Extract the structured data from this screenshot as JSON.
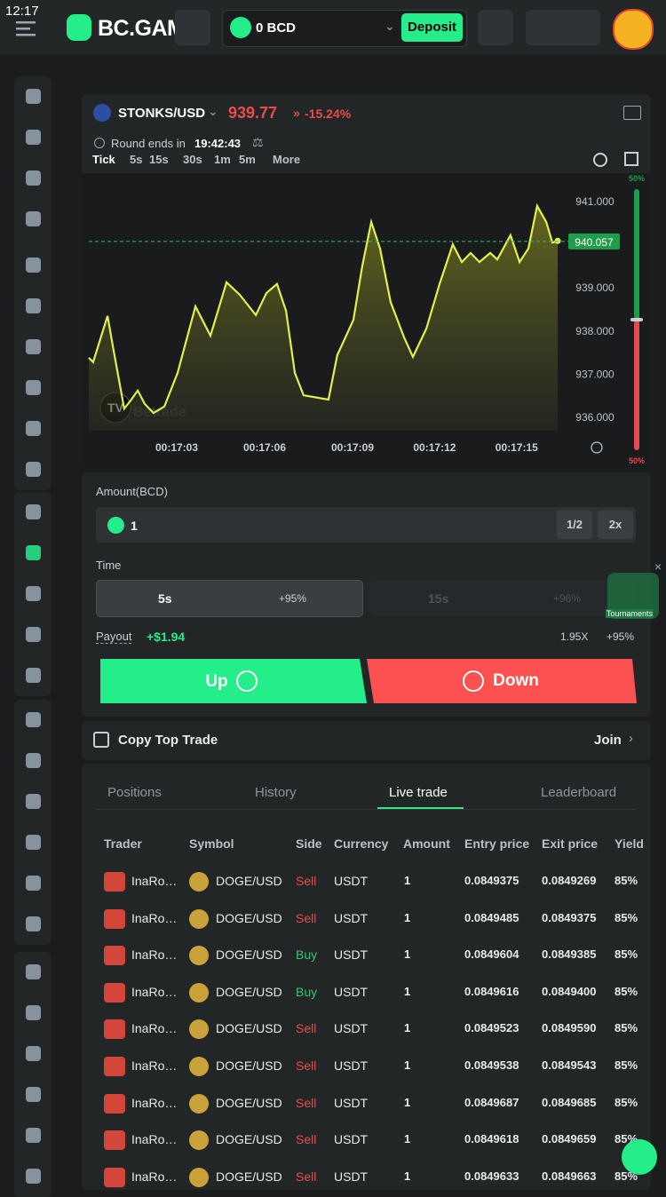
{
  "status_bar": {
    "time": "12:17"
  },
  "header": {
    "logo": "BC.GAME",
    "balance": "0 BCD",
    "deposit": "Deposit"
  },
  "market": {
    "pair": "STONKS/USD",
    "price": 939.77,
    "change": "-15.24%",
    "round_label": "Round ends in",
    "round_time": "19:42:43",
    "timeframes": [
      "Tick",
      "5s",
      "15s",
      "30s",
      "1m",
      "5m",
      "More"
    ]
  },
  "chart_data": {
    "type": "line",
    "watermark": "Betrade",
    "x": [
      0.0,
      0.15,
      0.64,
      0.85,
      1.21,
      1.45,
      1.67,
      1.91,
      2.21,
      2.58,
      3.03,
      3.64,
      4.15,
      4.7,
      5.15,
      5.7,
      6.06,
      6.42,
      6.73,
      7.03,
      7.33,
      8.18,
      8.48,
      9.03,
      9.33,
      9.64,
      9.94,
      10.3,
      10.76,
      11.06,
      11.52,
      11.97,
      12.42,
      12.73,
      13.03,
      13.33,
      13.7,
      13.94,
      14.39,
      14.7,
      15.0,
      15.3,
      15.61,
      15.82,
      16.0
    ],
    "series": [
      {
        "color": "#e3ee4f",
        "values": [
          937.36,
          937.26,
          938.33,
          937.52,
          936.18,
          936.39,
          936.6,
          936.29,
          936.08,
          936.23,
          937.01,
          938.55,
          937.87,
          939.11,
          938.82,
          938.35,
          938.86,
          939.07,
          938.45,
          937.01,
          936.49,
          936.39,
          937.42,
          938.24,
          939.48,
          940.51,
          939.89,
          938.65,
          937.83,
          937.38,
          938.04,
          939.07,
          939.99,
          939.58,
          939.79,
          939.58,
          939.79,
          939.64,
          940.2,
          939.58,
          939.89,
          940.88,
          940.51,
          940.03,
          940.07
        ]
      }
    ],
    "xlim": [
      0,
      16.5
    ],
    "xticks": [
      {
        "value": 3,
        "label": "00:17:03"
      },
      {
        "value": 6,
        "label": "00:17:06"
      },
      {
        "value": 9,
        "label": "00:17:09"
      },
      {
        "value": 11.8,
        "label": "00:17:12"
      },
      {
        "value": 14.6,
        "label": "00:17:15"
      }
    ],
    "ylim": [
      935.67,
      941.64
    ],
    "yticks": [
      {
        "value": 936,
        "label": "936.000"
      },
      {
        "value": 937,
        "label": "937.000"
      },
      {
        "value": 938,
        "label": "938.000"
      },
      {
        "value": 939,
        "label": "939.000"
      },
      {
        "value": 941,
        "label": "941.000"
      }
    ],
    "last_price": 940.057,
    "sentiment": [
      {
        "value": 50,
        "label": "50%",
        "color": "#1f9e4a"
      },
      {
        "value": 50,
        "label": "50%",
        "color": "#e5484d"
      }
    ]
  },
  "trade": {
    "amount_label": "Amount(BCD)",
    "amount": 1,
    "half": "1/2",
    "double": "2x",
    "time_label": "Time",
    "durations": [
      {
        "duration": "5s",
        "payout": "+95%"
      },
      {
        "duration": "15s",
        "payout": "+96%"
      }
    ],
    "payout_label": "Payout",
    "payout": "+$1.94",
    "multiplier": "1.95X",
    "rate": "+95%",
    "up": "Up",
    "down": "Down"
  },
  "tournaments": "Tournaments",
  "copy_trade": {
    "label": "Copy Top Trade",
    "action": "Join"
  },
  "tabs": [
    "Positions",
    "History",
    "Live trade",
    "Leaderboard"
  ],
  "table": {
    "columns": [
      "Trader",
      "Symbol",
      "Side",
      "Currency",
      "Amount",
      "Entry price",
      "Exit price",
      "Yield"
    ],
    "rows": [
      [
        "InaRo…",
        "DOGE/USD",
        "Sell",
        "USDT",
        1,
        "0.0849375",
        "0.0849269",
        "85%"
      ],
      [
        "InaRo…",
        "DOGE/USD",
        "Sell",
        "USDT",
        1,
        "0.0849485",
        "0.0849375",
        "85%"
      ],
      [
        "InaRo…",
        "DOGE/USD",
        "Buy",
        "USDT",
        1,
        "0.0849604",
        "0.0849385",
        "85%"
      ],
      [
        "InaRo…",
        "DOGE/USD",
        "Buy",
        "USDT",
        1,
        "0.0849616",
        "0.0849400",
        "85%"
      ],
      [
        "InaRo…",
        "DOGE/USD",
        "Sell",
        "USDT",
        1,
        "0.0849523",
        "0.0849590",
        "85%"
      ],
      [
        "InaRo…",
        "DOGE/USD",
        "Sell",
        "USDT",
        1,
        "0.0849538",
        "0.0849543",
        "85%"
      ],
      [
        "InaRo…",
        "DOGE/USD",
        "Sell",
        "USDT",
        1,
        "0.0849687",
        "0.0849685",
        "85%"
      ],
      [
        "InaRo…",
        "DOGE/USD",
        "Sell",
        "USDT",
        1,
        "0.0849618",
        "0.0849659",
        "85%"
      ],
      [
        "InaRo…",
        "DOGE/USD",
        "Sell",
        "USDT",
        1,
        "0.0849633",
        "0.0849663",
        "85%"
      ]
    ]
  }
}
